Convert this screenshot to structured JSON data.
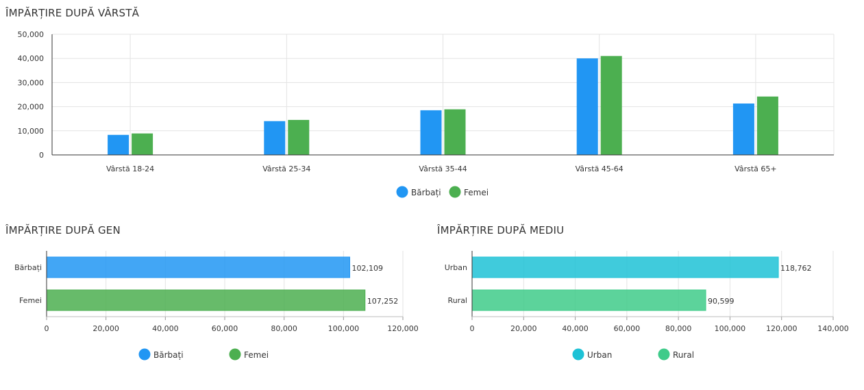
{
  "colors": {
    "barbati": "#2196f3",
    "femei": "#4caf50",
    "urban": "#1ec2d6",
    "rural": "#3fcb8a",
    "grid": "#e3e3e3",
    "axis": "#333333"
  },
  "chart_data": [
    {
      "id": "age",
      "type": "bar",
      "title": "ÎMPĂRȚIRE DUPĂ VÂRSTĂ",
      "categories": [
        "Vârstă 18-24",
        "Vârstă 25-34",
        "Vârstă 35-44",
        "Vârstă 45-64",
        "Vârstă 65+"
      ],
      "series": [
        {
          "name": "Bărbați",
          "values": [
            8300,
            14000,
            18500,
            40000,
            21300
          ]
        },
        {
          "name": "Femei",
          "values": [
            8900,
            14500,
            18900,
            41000,
            24200
          ]
        }
      ],
      "ylim": [
        0,
        50000
      ],
      "yticks": [
        "0",
        "10,000",
        "20,000",
        "30,000",
        "40,000",
        "50,000"
      ],
      "grid": true,
      "legend": "bottom-center"
    },
    {
      "id": "gender",
      "type": "bar",
      "orientation": "horizontal",
      "title": "ÎMPĂRȚIRE DUPĂ GEN",
      "categories": [
        "Bărbați",
        "Femei"
      ],
      "values": [
        102109,
        107252
      ],
      "value_labels": [
        "102,109",
        "107,252"
      ],
      "xlim": [
        0,
        120000
      ],
      "xticks": [
        "0",
        "20,000",
        "40,000",
        "60,000",
        "80,000",
        "100,000",
        "120,000"
      ],
      "legend_entries": [
        "Bărbați",
        "Femei"
      ],
      "grid": true,
      "legend": "bottom-center"
    },
    {
      "id": "env",
      "type": "bar",
      "orientation": "horizontal",
      "title": "ÎMPĂRȚIRE DUPĂ MEDIU",
      "categories": [
        "Urban",
        "Rural"
      ],
      "values": [
        118762,
        90599
      ],
      "value_labels": [
        "118,762",
        "90,599"
      ],
      "xlim": [
        0,
        140000
      ],
      "xticks": [
        "0",
        "20,000",
        "40,000",
        "60,000",
        "80,000",
        "100,000",
        "120,000",
        "140,000"
      ],
      "legend_entries": [
        "Urban",
        "Rural"
      ],
      "grid": true,
      "legend": "bottom-center"
    }
  ]
}
